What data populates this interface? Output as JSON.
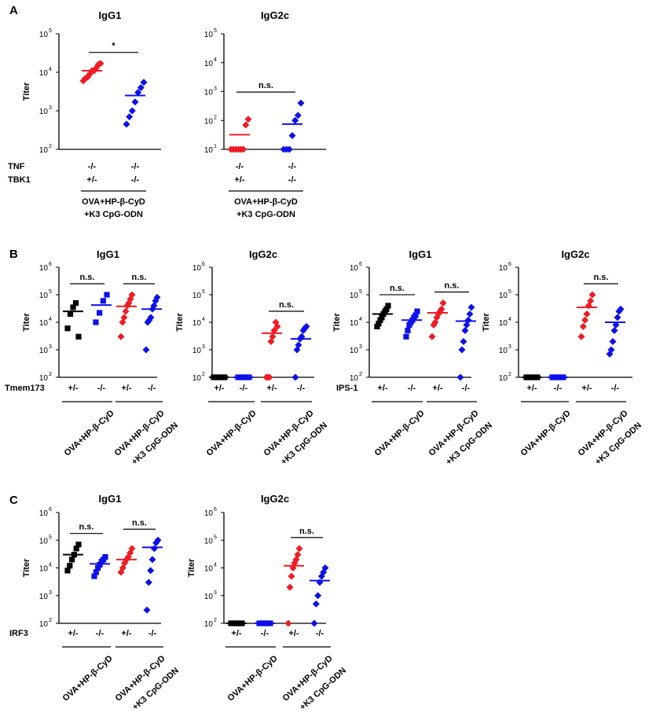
{
  "colors": {
    "black": "#000000",
    "red": "#ee1c24",
    "blue": "#0d10e8"
  },
  "chart_data": [
    {
      "panel": "A",
      "type": "scatter",
      "title": "IgG1",
      "ylabel": "Titer",
      "scale": "log10",
      "ylim_exp": [
        2,
        5
      ],
      "tick_labels": [
        "10",
        "10",
        "10",
        "10"
      ],
      "tick_exponents": [
        "2",
        "3",
        "4",
        "5"
      ],
      "genotype_rows": [
        {
          "label": "TNF",
          "values": [
            "-/-",
            "-/-"
          ]
        },
        {
          "label": "TBK1",
          "values": [
            "+/-",
            "-/-"
          ]
        }
      ],
      "brackets": [
        {
          "lines": [
            "OVA+HP-β-CyD",
            "+K3 CpG-ODN"
          ],
          "groups": [
            0,
            1
          ],
          "rotated": false
        }
      ],
      "comparisons": [
        {
          "groups": [
            0,
            1
          ],
          "label": "*"
        }
      ],
      "groups": [
        {
          "color": "red",
          "mean": 11000,
          "values": [
            6000,
            7000,
            7500,
            9000,
            11000,
            11000,
            13000,
            16000,
            17000
          ]
        },
        {
          "color": "blue",
          "mean": 2500,
          "values": [
            450,
            700,
            1000,
            1700,
            3000,
            4000,
            5500
          ]
        }
      ]
    },
    {
      "panel": "A",
      "type": "scatter",
      "title": "IgG2c",
      "ylabel": "",
      "scale": "log10",
      "ylim_exp": [
        1,
        5
      ],
      "tick_labels": [
        "10",
        "10",
        "10",
        "10",
        "10"
      ],
      "tick_exponents": [
        "1",
        "2",
        "3",
        "4",
        "5"
      ],
      "genotype_rows": [
        {
          "label": "",
          "values": [
            "-/-",
            "-/-"
          ]
        },
        {
          "label": "",
          "values": [
            "+/-",
            "-/-"
          ]
        }
      ],
      "brackets": [
        {
          "lines": [
            "OVA+HP-β-CyD",
            "+K3 CpG-ODN"
          ],
          "groups": [
            0,
            1
          ],
          "rotated": false
        }
      ],
      "comparisons": [
        {
          "groups": [
            0,
            1
          ],
          "label": "n.s."
        }
      ],
      "groups": [
        {
          "color": "red",
          "mean": 32,
          "values": [
            10,
            10,
            10,
            10,
            10,
            10,
            70,
            110
          ]
        },
        {
          "color": "blue",
          "mean": 75,
          "values": [
            10,
            10,
            10,
            30,
            100,
            150,
            400
          ]
        }
      ]
    },
    {
      "panel": "B",
      "type": "scatter",
      "title": "IgG1",
      "ylabel": "Titer",
      "scale": "log10",
      "ylim_exp": [
        2,
        6
      ],
      "tick_labels": [
        "10",
        "10",
        "10",
        "10",
        "10"
      ],
      "tick_exponents": [
        "2",
        "3",
        "4",
        "5",
        "6"
      ],
      "genotype_rows": [
        {
          "label": "Tmem173",
          "values": [
            "+/-",
            "-/-",
            "+/-",
            "-/-"
          ]
        }
      ],
      "brackets": [
        {
          "lines": [
            "OVA+HP-β-CyD"
          ],
          "groups": [
            0,
            1
          ],
          "rotated": true
        },
        {
          "lines": [
            "OVA+HP-β-CyD",
            "+K3 CpG-ODN"
          ],
          "groups": [
            2,
            3
          ],
          "rotated": true
        }
      ],
      "comparisons": [
        {
          "groups": [
            0,
            1
          ],
          "label": "n.s."
        },
        {
          "groups": [
            2,
            3
          ],
          "label": "n.s."
        }
      ],
      "groups": [
        {
          "color": "black",
          "mean": 25000,
          "values": [
            6000,
            20000,
            35000,
            50000,
            3000
          ]
        },
        {
          "color": "blue",
          "mean": 42000,
          "values": [
            10000,
            22000,
            60000,
            100000
          ]
        },
        {
          "color": "red",
          "mean": 38000,
          "values": [
            3000,
            10000,
            15000,
            25000,
            40000,
            50000,
            70000,
            100000
          ]
        },
        {
          "color": "blue",
          "mean": 30000,
          "values": [
            1000,
            10000,
            12000,
            15000,
            30000,
            40000,
            60000,
            80000
          ]
        }
      ]
    },
    {
      "panel": "B",
      "type": "scatter",
      "title": "IgG2c",
      "ylabel": "Titer",
      "scale": "log10",
      "ylim_exp": [
        2,
        6
      ],
      "tick_labels": [
        "10",
        "10",
        "10",
        "10",
        "10"
      ],
      "tick_exponents": [
        "2",
        "3",
        "4",
        "5",
        "6"
      ],
      "genotype_rows": [
        {
          "label": "",
          "values": [
            "+/-",
            "-/-",
            "+/-",
            "-/-"
          ]
        }
      ],
      "brackets": [
        {
          "lines": [
            "OVA+HP-β-CyD"
          ],
          "groups": [
            0,
            1
          ],
          "rotated": true
        },
        {
          "lines": [
            "OVA+HP-β-CyD",
            "+K3 CpG-ODN"
          ],
          "groups": [
            2,
            3
          ],
          "rotated": true
        }
      ],
      "comparisons": [
        {
          "groups": [
            2,
            3
          ],
          "label": "n.s."
        }
      ],
      "groups": [
        {
          "color": "black",
          "mean": 100,
          "values": [
            100,
            100,
            100,
            100,
            100
          ]
        },
        {
          "color": "blue",
          "mean": 100,
          "values": [
            100,
            100,
            100,
            100,
            100
          ]
        },
        {
          "color": "red",
          "mean": 4000,
          "values": [
            100,
            100,
            100,
            2000,
            3000,
            5000,
            10000,
            7000
          ]
        },
        {
          "color": "blue",
          "mean": 2500,
          "values": [
            100,
            1000,
            1500,
            2500,
            3000,
            5000,
            6000,
            7000
          ]
        }
      ]
    },
    {
      "panel": "B",
      "type": "scatter",
      "title": "IgG1",
      "ylabel": "Titer",
      "scale": "log10",
      "ylim_exp": [
        2,
        6
      ],
      "tick_labels": [
        "10",
        "10",
        "10",
        "10",
        "10"
      ],
      "tick_exponents": [
        "2",
        "3",
        "4",
        "5",
        "6"
      ],
      "genotype_rows": [
        {
          "label": "IPS-1",
          "values": [
            "+/-",
            "-/-",
            "+/-",
            "-/-"
          ]
        }
      ],
      "brackets": [
        {
          "lines": [
            "OVA+HP-β-CyD"
          ],
          "groups": [
            0,
            1
          ],
          "rotated": true
        },
        {
          "lines": [
            "OVA+HP-β-CyD",
            "+K3 CpG-ODN"
          ],
          "groups": [
            2,
            3
          ],
          "rotated": true
        }
      ],
      "comparisons": [
        {
          "groups": [
            0,
            1
          ],
          "label": "n.s."
        },
        {
          "groups": [
            2,
            3
          ],
          "label": "n.s."
        }
      ],
      "groups": [
        {
          "color": "black",
          "mean": 20000,
          "values": [
            7000,
            9000,
            12000,
            15000,
            20000,
            25000,
            30000,
            40000
          ]
        },
        {
          "color": "blue",
          "mean": 12000,
          "values": [
            3000,
            5000,
            8000,
            10000,
            12000,
            15000,
            18000,
            25000
          ]
        },
        {
          "color": "red",
          "mean": 22000,
          "values": [
            3000,
            8000,
            10000,
            15000,
            20000,
            25000,
            30000,
            50000
          ]
        },
        {
          "color": "blue",
          "mean": 11000,
          "values": [
            100,
            1000,
            2000,
            5000,
            8000,
            12000,
            20000,
            35000
          ]
        }
      ]
    },
    {
      "panel": "B",
      "type": "scatter",
      "title": "IgG2c",
      "ylabel": "Titer",
      "scale": "log10",
      "ylim_exp": [
        2,
        6
      ],
      "tick_labels": [
        "10",
        "10",
        "10",
        "10",
        "10"
      ],
      "tick_exponents": [
        "2",
        "3",
        "4",
        "5",
        "6"
      ],
      "genotype_rows": [
        {
          "label": "",
          "values": [
            "+/-",
            "-/-",
            "+/-",
            "-/-"
          ]
        }
      ],
      "brackets": [
        {
          "lines": [
            "OVA+HP-β-CyD"
          ],
          "groups": [
            0,
            1
          ],
          "rotated": true
        },
        {
          "lines": [
            "OVA+HP-β-CyD",
            "+K3 CpG-ODN"
          ],
          "groups": [
            2,
            3
          ],
          "rotated": true
        }
      ],
      "comparisons": [
        {
          "groups": [
            2,
            3
          ],
          "label": "n.s."
        }
      ],
      "groups": [
        {
          "color": "black",
          "mean": 100,
          "values": [
            100,
            100,
            100,
            100,
            100
          ]
        },
        {
          "color": "blue",
          "mean": 100,
          "values": [
            100,
            100,
            100,
            100,
            100
          ]
        },
        {
          "color": "red",
          "mean": 35000,
          "values": [
            3000,
            7000,
            12000,
            20000,
            40000,
            60000,
            100000
          ]
        },
        {
          "color": "blue",
          "mean": 10000,
          "values": [
            700,
            1000,
            2000,
            5000,
            8000,
            15000,
            25000,
            30000
          ]
        }
      ]
    },
    {
      "panel": "C",
      "type": "scatter",
      "title": "IgG1",
      "ylabel": "Titer",
      "scale": "log10",
      "ylim_exp": [
        2,
        6
      ],
      "tick_labels": [
        "10",
        "10",
        "10",
        "10",
        "10"
      ],
      "tick_exponents": [
        "2",
        "3",
        "4",
        "5",
        "6"
      ],
      "genotype_rows": [
        {
          "label": "IRF3",
          "values": [
            "+/-",
            "-/-",
            "+/-",
            "-/-"
          ]
        }
      ],
      "brackets": [
        {
          "lines": [
            "OVA+HP-β-CyD"
          ],
          "groups": [
            0,
            1
          ],
          "rotated": true
        },
        {
          "lines": [
            "OVA+HP-β-CyD",
            "+K3 CpG-ODN"
          ],
          "groups": [
            2,
            3
          ],
          "rotated": true
        }
      ],
      "comparisons": [
        {
          "groups": [
            0,
            1
          ],
          "label": "n.s."
        },
        {
          "groups": [
            2,
            3
          ],
          "label": "n.s."
        }
      ],
      "groups": [
        {
          "color": "black",
          "mean": 30000,
          "values": [
            8000,
            12000,
            20000,
            30000,
            50000,
            70000
          ]
        },
        {
          "color": "blue",
          "mean": 14000,
          "values": [
            5000,
            7000,
            10000,
            13000,
            17000,
            20000,
            25000
          ]
        },
        {
          "color": "red",
          "mean": 20000,
          "values": [
            7000,
            10000,
            15000,
            20000,
            25000,
            35000,
            50000
          ]
        },
        {
          "color": "blue",
          "mean": 55000,
          "values": [
            300,
            3000,
            8000,
            20000,
            50000,
            80000,
            100000
          ]
        }
      ]
    },
    {
      "panel": "C",
      "type": "scatter",
      "title": "IgG2c",
      "ylabel": "Titer",
      "scale": "log10",
      "ylim_exp": [
        2,
        6
      ],
      "tick_labels": [
        "10",
        "10",
        "10",
        "10",
        "10"
      ],
      "tick_exponents": [
        "2",
        "3",
        "4",
        "5",
        "6"
      ],
      "genotype_rows": [
        {
          "label": "",
          "values": [
            "+/-",
            "-/-",
            "+/-",
            "-/-"
          ]
        }
      ],
      "brackets": [
        {
          "lines": [
            "OVA+HP-β-CyD"
          ],
          "groups": [
            0,
            1
          ],
          "rotated": true
        },
        {
          "lines": [
            "OVA+HP-β-CyD",
            "+K3 CpG-ODN"
          ],
          "groups": [
            2,
            3
          ],
          "rotated": true
        }
      ],
      "comparisons": [
        {
          "groups": [
            2,
            3
          ],
          "label": "n.s."
        }
      ],
      "groups": [
        {
          "color": "black",
          "mean": 100,
          "values": [
            100,
            100,
            100,
            100,
            100
          ]
        },
        {
          "color": "blue",
          "mean": 100,
          "values": [
            100,
            100,
            100,
            100,
            100
          ]
        },
        {
          "color": "red",
          "mean": 12000,
          "values": [
            100,
            2000,
            5000,
            10000,
            15000,
            20000,
            30000,
            50000
          ]
        },
        {
          "color": "blue",
          "mean": 3500,
          "values": [
            100,
            500,
            1000,
            3000,
            5000,
            7000,
            10000
          ]
        }
      ]
    }
  ],
  "panel_labels": [
    "A",
    "B",
    "C"
  ]
}
